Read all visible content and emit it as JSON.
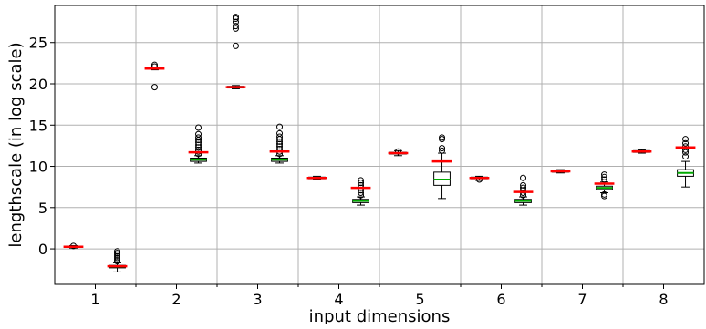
{
  "chart_data": {
    "type": "box",
    "xlabel": "input dimensions",
    "ylabel": "lengthscale (in log scale)",
    "ylim": [
      -4.3,
      29.5
    ],
    "yticks": [
      0,
      5,
      10,
      15,
      20,
      25
    ],
    "categories": [
      "1",
      "2",
      "3",
      "4",
      "5",
      "6",
      "7",
      "8"
    ],
    "grid": true,
    "series": [
      {
        "median_color": "#ff0000",
        "values": [
          {
            "q1": 0.2,
            "median": 0.25,
            "q3": 0.3,
            "whislo": 0.1,
            "whishi": 0.4,
            "fliers": [
              0.35
            ]
          },
          {
            "q1": 21.8,
            "median": 21.85,
            "q3": 21.9,
            "whislo": 21.7,
            "whishi": 22.0,
            "fliers": [
              19.6,
              22.1,
              22.3
            ]
          },
          {
            "q1": 19.5,
            "median": 19.6,
            "q3": 19.7,
            "whislo": 19.4,
            "whishi": 19.8,
            "fliers": [
              24.6,
              26.7,
              27.0,
              27.5,
              27.9,
              28.1
            ]
          },
          {
            "q1": 8.5,
            "median": 8.6,
            "q3": 8.7,
            "whislo": 8.4,
            "whishi": 8.8,
            "fliers": []
          },
          {
            "q1": 11.5,
            "median": 11.6,
            "q3": 11.7,
            "whislo": 11.3,
            "whishi": 11.9,
            "fliers": [
              11.8
            ]
          },
          {
            "q1": 8.5,
            "median": 8.6,
            "q3": 8.7,
            "whislo": 8.3,
            "whishi": 8.8,
            "fliers": [
              8.4
            ]
          },
          {
            "q1": 9.3,
            "median": 9.4,
            "q3": 9.5,
            "whislo": 9.2,
            "whishi": 9.6,
            "fliers": []
          },
          {
            "q1": 11.7,
            "median": 11.8,
            "q3": 11.9,
            "whislo": 11.6,
            "whishi": 12.0,
            "fliers": []
          }
        ]
      },
      {
        "median_color": "#00aa00",
        "values": [
          {
            "q1": -2.3,
            "median": -2.15,
            "q3": -2.0,
            "whislo": -2.8,
            "whishi": -1.7,
            "fliers": [
              -1.5,
              -1.3,
              -1.1,
              -0.9,
              -0.7,
              -0.5,
              -0.3
            ],
            "mean": -2.1
          },
          {
            "q1": 10.6,
            "median": 10.8,
            "q3": 11.0,
            "whislo": 10.4,
            "whishi": 11.3,
            "fliers": [
              11.5,
              11.8,
              12.0,
              12.3,
              12.6,
              12.9,
              13.2,
              13.5,
              13.9,
              14.7
            ],
            "mean": 11.7
          },
          {
            "q1": 10.6,
            "median": 10.8,
            "q3": 11.0,
            "whislo": 10.4,
            "whishi": 11.3,
            "fliers": [
              11.5,
              11.8,
              12.1,
              12.4,
              12.7,
              13.0,
              13.3,
              13.6,
              14.0,
              14.8
            ],
            "mean": 11.8
          },
          {
            "q1": 5.6,
            "median": 5.8,
            "q3": 6.0,
            "whislo": 5.3,
            "whishi": 6.3,
            "fliers": [
              6.5,
              6.8,
              7.1,
              7.4,
              7.7,
              8.0,
              8.3
            ],
            "mean": 7.4
          },
          {
            "q1": 7.7,
            "median": 8.4,
            "q3": 9.3,
            "whislo": 6.1,
            "whishi": 11.6,
            "fliers": [
              11.9,
              12.2,
              13.3,
              13.5
            ],
            "mean": 10.6
          },
          {
            "q1": 5.6,
            "median": 5.8,
            "q3": 6.0,
            "whislo": 5.3,
            "whishi": 6.3,
            "fliers": [
              6.5,
              6.8,
              7.1,
              7.4,
              7.7,
              8.6
            ],
            "mean": 6.9
          },
          {
            "q1": 7.2,
            "median": 7.4,
            "q3": 7.6,
            "whislo": 6.8,
            "whishi": 8.1,
            "fliers": [
              6.4,
              6.6,
              8.4,
              8.7,
              9.0
            ],
            "mean": 7.9
          },
          {
            "q1": 8.8,
            "median": 9.2,
            "q3": 9.6,
            "whislo": 7.5,
            "whishi": 10.6,
            "fliers": [
              11.2,
              11.7,
              12.0,
              12.4,
              12.8,
              13.3
            ],
            "mean": 12.3
          }
        ]
      }
    ]
  }
}
